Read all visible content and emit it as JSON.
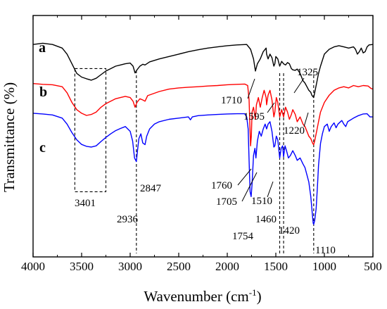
{
  "chart_data": {
    "type": "line",
    "title": "",
    "xlabel": "Wavenumber (cm",
    "xlabel_sup": "-1",
    "xlabel_close": ")",
    "ylabel": "Transmittance (%)",
    "x_reversed": true,
    "xlim": [
      4000,
      500
    ],
    "xticks": [
      "4000",
      "3500",
      "3000",
      "2500",
      "2000",
      "1500",
      "1000",
      "500"
    ],
    "ylim": [
      0,
      100
    ],
    "grid": false,
    "legend": "none",
    "series": [
      {
        "name": "a",
        "color": "#000000",
        "points": [
          [
            4000,
            88
          ],
          [
            3900,
            88.5
          ],
          [
            3800,
            88
          ],
          [
            3700,
            86.5
          ],
          [
            3650,
            84
          ],
          [
            3600,
            80
          ],
          [
            3550,
            76
          ],
          [
            3500,
            74.5
          ],
          [
            3450,
            73.8
          ],
          [
            3400,
            73.2
          ],
          [
            3350,
            74
          ],
          [
            3300,
            75.5
          ],
          [
            3250,
            77
          ],
          [
            3200,
            78
          ],
          [
            3150,
            79
          ],
          [
            3100,
            79.5
          ],
          [
            3050,
            80
          ],
          [
            3000,
            80.3
          ],
          [
            2970,
            79
          ],
          [
            2950,
            76.2
          ],
          [
            2930,
            77.5
          ],
          [
            2900,
            79
          ],
          [
            2870,
            79.8
          ],
          [
            2847,
            79.5
          ],
          [
            2800,
            80.8
          ],
          [
            2700,
            82
          ],
          [
            2600,
            83
          ],
          [
            2500,
            84
          ],
          [
            2400,
            85
          ],
          [
            2300,
            85.8
          ],
          [
            2200,
            86.5
          ],
          [
            2100,
            87
          ],
          [
            2000,
            87.5
          ],
          [
            1900,
            87.8
          ],
          [
            1800,
            88
          ],
          [
            1760,
            86
          ],
          [
            1730,
            82
          ],
          [
            1710,
            77
          ],
          [
            1690,
            80
          ],
          [
            1660,
            82
          ],
          [
            1630,
            85
          ],
          [
            1600,
            86.5
          ],
          [
            1595,
            84
          ],
          [
            1580,
            82
          ],
          [
            1560,
            84
          ],
          [
            1540,
            82.5
          ],
          [
            1520,
            79
          ],
          [
            1510,
            80
          ],
          [
            1500,
            83
          ],
          [
            1480,
            82
          ],
          [
            1460,
            79
          ],
          [
            1440,
            81
          ],
          [
            1420,
            80
          ],
          [
            1400,
            79.5
          ],
          [
            1380,
            80.5
          ],
          [
            1360,
            80
          ],
          [
            1340,
            78
          ],
          [
            1325,
            77.5
          ],
          [
            1300,
            77.3
          ],
          [
            1280,
            77.8
          ],
          [
            1250,
            76
          ],
          [
            1220,
            73
          ],
          [
            1200,
            72
          ],
          [
            1180,
            70.5
          ],
          [
            1160,
            69
          ],
          [
            1140,
            68.2
          ],
          [
            1130,
            67
          ],
          [
            1110,
            66
          ],
          [
            1100,
            68
          ],
          [
            1080,
            72
          ],
          [
            1060,
            76
          ],
          [
            1040,
            79
          ],
          [
            1000,
            84
          ],
          [
            950,
            86
          ],
          [
            900,
            87
          ],
          [
            850,
            87.5
          ],
          [
            800,
            87
          ],
          [
            750,
            86.5
          ],
          [
            700,
            87
          ],
          [
            680,
            86
          ],
          [
            660,
            84
          ],
          [
            640,
            85
          ],
          [
            620,
            86.5
          ],
          [
            600,
            84.5
          ],
          [
            580,
            85
          ],
          [
            560,
            87
          ],
          [
            540,
            87.8
          ],
          [
            500,
            88
          ]
        ]
      },
      {
        "name": "b",
        "color": "#ff0000",
        "points": [
          [
            4000,
            71.8
          ],
          [
            3900,
            71.5
          ],
          [
            3800,
            71.3
          ],
          [
            3700,
            70.5
          ],
          [
            3650,
            68
          ],
          [
            3600,
            64
          ],
          [
            3550,
            61
          ],
          [
            3500,
            59.5
          ],
          [
            3450,
            58.6
          ],
          [
            3400,
            59
          ],
          [
            3350,
            60
          ],
          [
            3300,
            62
          ],
          [
            3250,
            63.5
          ],
          [
            3200,
            64.5
          ],
          [
            3150,
            65.5
          ],
          [
            3100,
            66
          ],
          [
            3050,
            66.5
          ],
          [
            3000,
            66
          ],
          [
            2970,
            64.5
          ],
          [
            2950,
            62
          ],
          [
            2930,
            64
          ],
          [
            2900,
            65.5
          ],
          [
            2870,
            65
          ],
          [
            2847,
            64.5
          ],
          [
            2820,
            66.8
          ],
          [
            2700,
            68.5
          ],
          [
            2600,
            69.5
          ],
          [
            2500,
            70
          ],
          [
            2400,
            70.3
          ],
          [
            2300,
            70.5
          ],
          [
            2200,
            70.8
          ],
          [
            2100,
            71
          ],
          [
            2000,
            71.3
          ],
          [
            1900,
            71.5
          ],
          [
            1820,
            71.6
          ],
          [
            1790,
            71
          ],
          [
            1775,
            65
          ],
          [
            1765,
            52
          ],
          [
            1760,
            46
          ],
          [
            1752,
            50
          ],
          [
            1745,
            60
          ],
          [
            1730,
            62
          ],
          [
            1710,
            57
          ],
          [
            1700,
            63
          ],
          [
            1680,
            66
          ],
          [
            1660,
            62
          ],
          [
            1640,
            66
          ],
          [
            1620,
            69
          ],
          [
            1600,
            66
          ],
          [
            1595,
            63
          ],
          [
            1580,
            67
          ],
          [
            1560,
            69
          ],
          [
            1540,
            65
          ],
          [
            1520,
            58
          ],
          [
            1510,
            60
          ],
          [
            1495,
            66
          ],
          [
            1480,
            64
          ],
          [
            1460,
            58
          ],
          [
            1440,
            61
          ],
          [
            1420,
            58
          ],
          [
            1400,
            62
          ],
          [
            1380,
            60
          ],
          [
            1360,
            57
          ],
          [
            1340,
            59
          ],
          [
            1325,
            61
          ],
          [
            1300,
            59
          ],
          [
            1280,
            56
          ],
          [
            1250,
            58
          ],
          [
            1220,
            55
          ],
          [
            1200,
            54
          ],
          [
            1180,
            52
          ],
          [
            1160,
            50
          ],
          [
            1140,
            49
          ],
          [
            1120,
            47
          ],
          [
            1110,
            46.5
          ],
          [
            1100,
            48
          ],
          [
            1080,
            52
          ],
          [
            1060,
            56
          ],
          [
            1040,
            60
          ],
          [
            1000,
            64
          ],
          [
            950,
            67
          ],
          [
            900,
            69
          ],
          [
            850,
            70
          ],
          [
            800,
            70.5
          ],
          [
            750,
            70
          ],
          [
            700,
            71
          ],
          [
            650,
            70.5
          ],
          [
            600,
            71
          ],
          [
            550,
            70.8
          ],
          [
            520,
            69.8
          ],
          [
            500,
            69.5
          ]
        ]
      },
      {
        "name": "c",
        "color": "#0000ff",
        "points": [
          [
            4000,
            59.5
          ],
          [
            3900,
            59.2
          ],
          [
            3800,
            58.8
          ],
          [
            3700,
            57.5
          ],
          [
            3650,
            55
          ],
          [
            3600,
            51.5
          ],
          [
            3550,
            48.5
          ],
          [
            3500,
            46.6
          ],
          [
            3450,
            45.8
          ],
          [
            3401,
            45.5
          ],
          [
            3350,
            46
          ],
          [
            3300,
            47.8
          ],
          [
            3250,
            49.5
          ],
          [
            3200,
            51
          ],
          [
            3150,
            52.3
          ],
          [
            3100,
            53.2
          ],
          [
            3050,
            54
          ],
          [
            3000,
            52
          ],
          [
            2975,
            48
          ],
          [
            2955,
            41
          ],
          [
            2936,
            39.5
          ],
          [
            2925,
            44
          ],
          [
            2910,
            49
          ],
          [
            2890,
            51
          ],
          [
            2870,
            47.2
          ],
          [
            2847,
            46.5
          ],
          [
            2830,
            50
          ],
          [
            2800,
            53
          ],
          [
            2750,
            55
          ],
          [
            2700,
            56
          ],
          [
            2600,
            57
          ],
          [
            2500,
            57.5
          ],
          [
            2400,
            58
          ],
          [
            2380,
            56.8
          ],
          [
            2360,
            58
          ],
          [
            2300,
            58.5
          ],
          [
            2200,
            58.8
          ],
          [
            2100,
            59
          ],
          [
            2000,
            59.2
          ],
          [
            1900,
            59.3
          ],
          [
            1820,
            59.3
          ],
          [
            1800,
            58
          ],
          [
            1785,
            53
          ],
          [
            1775,
            40
          ],
          [
            1765,
            27
          ],
          [
            1754,
            25
          ],
          [
            1745,
            30
          ],
          [
            1730,
            42
          ],
          [
            1715,
            45
          ],
          [
            1705,
            41
          ],
          [
            1690,
            48
          ],
          [
            1670,
            52
          ],
          [
            1650,
            50
          ],
          [
            1630,
            53
          ],
          [
            1610,
            55
          ],
          [
            1595,
            53
          ],
          [
            1580,
            55
          ],
          [
            1560,
            56
          ],
          [
            1540,
            52
          ],
          [
            1520,
            45.5
          ],
          [
            1510,
            46
          ],
          [
            1495,
            50
          ],
          [
            1480,
            48.5
          ],
          [
            1460,
            41
          ],
          [
            1445,
            45
          ],
          [
            1430,
            46
          ],
          [
            1420,
            41.5
          ],
          [
            1405,
            46
          ],
          [
            1390,
            44
          ],
          [
            1370,
            41
          ],
          [
            1350,
            42
          ],
          [
            1325,
            44
          ],
          [
            1300,
            42
          ],
          [
            1280,
            40
          ],
          [
            1250,
            41
          ],
          [
            1220,
            38.5
          ],
          [
            1200,
            37
          ],
          [
            1180,
            34
          ],
          [
            1160,
            31
          ],
          [
            1140,
            25
          ],
          [
            1125,
            18
          ],
          [
            1115,
            14
          ],
          [
            1110,
            13.5
          ],
          [
            1100,
            15
          ],
          [
            1085,
            20
          ],
          [
            1070,
            30
          ],
          [
            1060,
            38
          ],
          [
            1040,
            47
          ],
          [
            1020,
            51
          ],
          [
            1000,
            54
          ],
          [
            970,
            55
          ],
          [
            950,
            52
          ],
          [
            930,
            54
          ],
          [
            900,
            55.5
          ],
          [
            880,
            53.5
          ],
          [
            860,
            55
          ],
          [
            820,
            56.5
          ],
          [
            800,
            55
          ],
          [
            780,
            54
          ],
          [
            760,
            56
          ],
          [
            700,
            57.5
          ],
          [
            650,
            58.5
          ],
          [
            600,
            59.2
          ],
          [
            560,
            59.3
          ],
          [
            530,
            58
          ],
          [
            500,
            58
          ]
        ]
      }
    ],
    "annotations": [
      {
        "text": "3401",
        "x": 3401
      },
      {
        "text": "2936",
        "x": 2936
      },
      {
        "text": "2847",
        "x": 2847
      },
      {
        "text": "1710",
        "x": 1710
      },
      {
        "text": "1595",
        "x": 1595
      },
      {
        "text": "1760",
        "x": 1760
      },
      {
        "text": "1705",
        "x": 1705
      },
      {
        "text": "1754",
        "x": 1754
      },
      {
        "text": "1510",
        "x": 1510
      },
      {
        "text": "1460",
        "x": 1460
      },
      {
        "text": "1420",
        "x": 1420
      },
      {
        "text": "1325",
        "x": 1325
      },
      {
        "text": "1220",
        "x": 1220
      },
      {
        "text": "1110",
        "x": 1110
      }
    ],
    "reference_lines_x": [
      2936,
      1460,
      1420,
      1110
    ],
    "highlight_box": {
      "x": [
        3570,
        3250
      ],
      "y": [
        27,
        78
      ]
    }
  }
}
